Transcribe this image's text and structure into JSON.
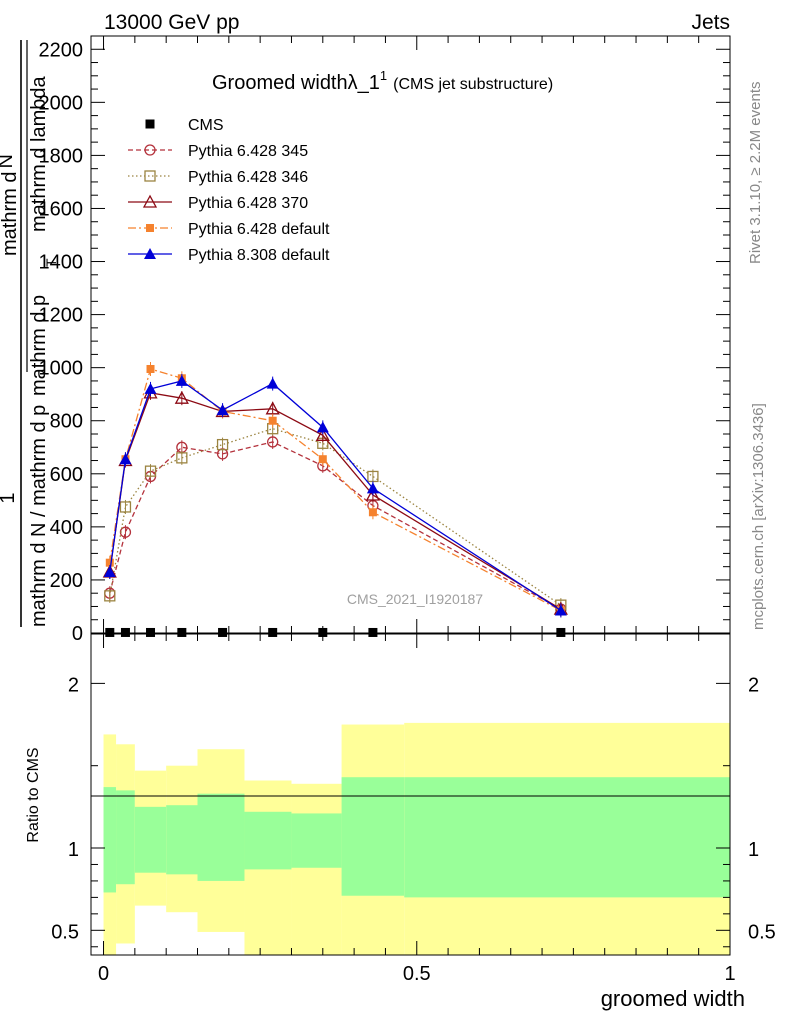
{
  "header": {
    "left": "13000 GeV pp",
    "right": "Jets"
  },
  "side_text": {
    "rivet": "Rivet 3.1.10, ≥ 2.2M events",
    "mcplots": "mcplots.cern.ch [arXiv:1306.3436]"
  },
  "ratio_ylabel": "Ratio to CMS",
  "colors": {
    "cms": "#000000",
    "p345": "#b4323c",
    "p346": "#9b8441",
    "p370": "#8c0a14",
    "pdef6": "#f5822e",
    "pdef8": "#0000d7",
    "band_inner": "#99ff99",
    "band_outer": "#ffff99"
  },
  "chart_data": [
    {
      "type": "line",
      "title_main": "Groomed widthλ_1",
      "title_sup": "1",
      "title_note": "(CMS jet substructure)",
      "watermark": "CMS_2021_I1920187",
      "ylabel_top": "1",
      "ylabel_lines": [
        "mathrm d N / mathrm d p",
        "mathrm d p",
        "mathrm d lambda"
      ],
      "ylabel_T": "T",
      "ylabel_num": "mathrm d",
      "ylabel_numN": "N",
      "xlim": [
        -0.02,
        1.0
      ],
      "ylim": [
        0,
        2250
      ],
      "yticks": [
        0,
        200,
        400,
        600,
        800,
        1000,
        1200,
        1400,
        1600,
        1800,
        2000,
        2200
      ],
      "ytick_labels": [
        "0",
        "200",
        "400",
        "600",
        "800",
        "1000",
        "1200",
        "1400",
        "1600",
        "1800",
        "2000",
        "2200"
      ],
      "series": [
        {
          "name": "CMS",
          "key": "cms",
          "style": "data",
          "x": [
            0.01,
            0.035,
            0.075,
            0.125,
            0.19,
            0.27,
            0.35,
            0.43,
            0.73
          ],
          "y": [
            2,
            2,
            2,
            2,
            2,
            2,
            2,
            2,
            2
          ]
        },
        {
          "name": "Pythia 6.428 345",
          "key": "p345",
          "style": "circle-open-dashed",
          "x": [
            0.01,
            0.035,
            0.075,
            0.125,
            0.19,
            0.27,
            0.35,
            0.43,
            0.73
          ],
          "y": [
            150,
            380,
            590,
            700,
            675,
            720,
            630,
            480,
            90
          ]
        },
        {
          "name": "Pythia 6.428 346",
          "key": "p346",
          "style": "square-open-dotted",
          "x": [
            0.01,
            0.035,
            0.075,
            0.125,
            0.19,
            0.27,
            0.35,
            0.43,
            0.73
          ],
          "y": [
            140,
            475,
            610,
            660,
            710,
            770,
            715,
            590,
            105
          ]
        },
        {
          "name": "Pythia 6.428 370",
          "key": "p370",
          "style": "triangle-open-solid",
          "x": [
            0.01,
            0.035,
            0.075,
            0.125,
            0.19,
            0.27,
            0.35,
            0.43,
            0.73
          ],
          "y": [
            230,
            650,
            905,
            885,
            835,
            845,
            745,
            520,
            90
          ]
        },
        {
          "name": "Pythia 6.428 default",
          "key": "pdef6",
          "style": "square-filled-dashdot",
          "x": [
            0.01,
            0.035,
            0.075,
            0.125,
            0.19,
            0.27,
            0.35,
            0.43,
            0.73
          ],
          "y": [
            265,
            655,
            995,
            960,
            835,
            800,
            655,
            455,
            85
          ]
        },
        {
          "name": "Pythia 8.308 default",
          "key": "pdef8",
          "style": "triangle-filled-solid",
          "x": [
            0.01,
            0.035,
            0.075,
            0.125,
            0.19,
            0.27,
            0.35,
            0.43,
            0.73
          ],
          "y": [
            230,
            655,
            920,
            950,
            840,
            940,
            775,
            545,
            85
          ]
        }
      ]
    },
    {
      "type": "area",
      "ylabel": "Ratio to CMS",
      "xlabel": "groomed width",
      "xlim": [
        -0.02,
        1.0
      ],
      "ylim": [
        0.35,
        2.3
      ],
      "yticks": [
        0.5,
        1,
        2
      ],
      "ytick_labels": [
        "0.5",
        "1",
        "2"
      ],
      "xticks": [
        0,
        0.5,
        1
      ],
      "xtick_labels": [
        "0",
        "0.5",
        "1"
      ],
      "bins": [
        0.0,
        0.02,
        0.05,
        0.1,
        0.15,
        0.225,
        0.3,
        0.38,
        0.48,
        1.0
      ],
      "band_inner_upper": [
        1.37,
        1.35,
        1.25,
        1.26,
        1.33,
        1.22,
        1.21,
        1.43,
        1.43
      ],
      "band_inner_lower": [
        0.73,
        0.78,
        0.85,
        0.84,
        0.8,
        0.87,
        0.88,
        0.71,
        0.7
      ],
      "band_outer_upper": [
        1.69,
        1.63,
        1.47,
        1.5,
        1.6,
        1.41,
        1.39,
        1.75,
        1.76
      ],
      "band_outer_lower": [
        0.35,
        0.42,
        0.65,
        0.61,
        0.49,
        0.35,
        0.35,
        0.35,
        0.35
      ]
    }
  ]
}
